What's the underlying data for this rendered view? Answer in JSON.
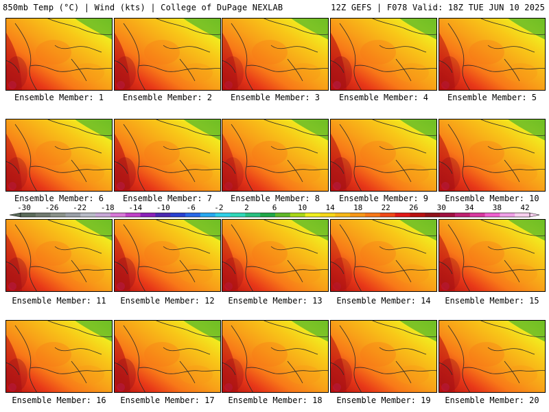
{
  "header": {
    "left": "850mb Temp (°C) | Wind (kts) | College of DuPage NEXLAB",
    "right": "12Z GEFS | F078 Valid: 18Z TUE JUN 10 2025"
  },
  "members": [
    {
      "label": "Ensemble Member: 1",
      "warmth": 0.55
    },
    {
      "label": "Ensemble Member: 2",
      "warmth": 0.55
    },
    {
      "label": "Ensemble Member: 3",
      "warmth": 0.45
    },
    {
      "label": "Ensemble Member: 4",
      "warmth": 0.65
    },
    {
      "label": "Ensemble Member: 5",
      "warmth": 0.45
    },
    {
      "label": "Ensemble Member: 6",
      "warmth": 0.5
    },
    {
      "label": "Ensemble Member: 7",
      "warmth": 0.6
    },
    {
      "label": "Ensemble Member: 8",
      "warmth": 0.4
    },
    {
      "label": "Ensemble Member: 9",
      "warmth": 0.6
    },
    {
      "label": "Ensemble Member: 10",
      "warmth": 0.55
    },
    {
      "label": "Ensemble Member: 11",
      "warmth": 0.6
    },
    {
      "label": "Ensemble Member: 12",
      "warmth": 0.6
    },
    {
      "label": "Ensemble Member: 13",
      "warmth": 0.45
    },
    {
      "label": "Ensemble Member: 14",
      "warmth": 0.35
    },
    {
      "label": "Ensemble Member: 15",
      "warmth": 0.5
    },
    {
      "label": "Ensemble Member: 16",
      "warmth": 0.55
    },
    {
      "label": "Ensemble Member: 17",
      "warmth": 0.6
    },
    {
      "label": "Ensemble Member: 18",
      "warmth": 0.5
    },
    {
      "label": "Ensemble Member: 19",
      "warmth": 0.55
    },
    {
      "label": "Ensemble Member: 20",
      "warmth": 0.55
    }
  ],
  "colorbar": {
    "ticks": [
      "-30",
      "-26",
      "-22",
      "-18",
      "-14",
      "-10",
      "-6",
      "-2",
      "2",
      "6",
      "10",
      "14",
      "18",
      "22",
      "26",
      "30",
      "34",
      "38",
      "42"
    ],
    "colors": [
      "#5a6a5a",
      "#707a70",
      "#8a928a",
      "#9aa0a8",
      "#b8bcc8",
      "#c8a8d8",
      "#d878d8",
      "#c040c8",
      "#8a20b8",
      "#4a28b0",
      "#2840d0",
      "#2868e8",
      "#28a8f0",
      "#30d0e8",
      "#30d8b8",
      "#28c080",
      "#20a848",
      "#60b828",
      "#a8d818",
      "#f0f020",
      "#f8d818",
      "#f8b818",
      "#f89818",
      "#f87818",
      "#f04818",
      "#e01818",
      "#b81010",
      "#901018",
      "#a01040",
      "#c02070",
      "#d838a0",
      "#f060d0",
      "#f0a0e8",
      "#f8d0f0"
    ]
  }
}
